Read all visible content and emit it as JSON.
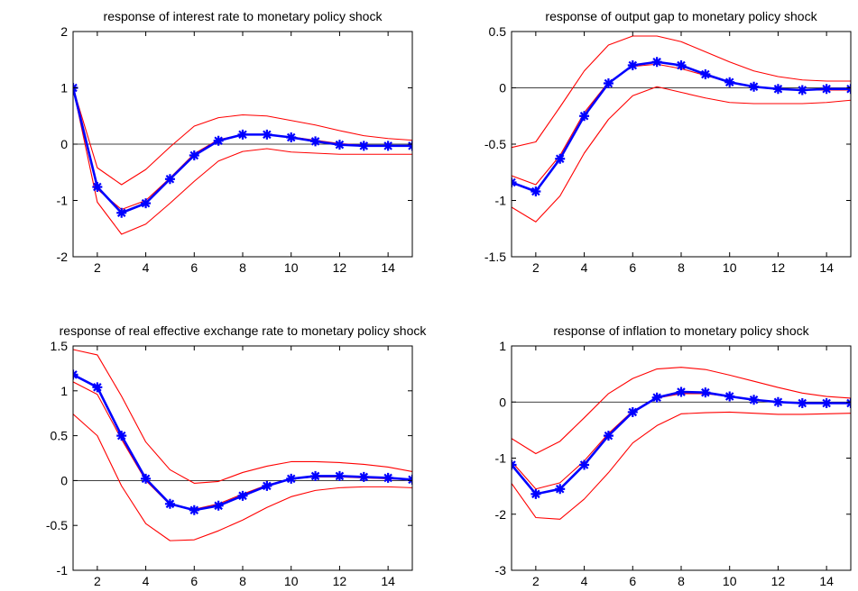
{
  "chart_data": [
    {
      "type": "line",
      "title": "response of interest rate to monetary policy shock",
      "x": [
        1,
        2,
        3,
        4,
        5,
        6,
        7,
        8,
        9,
        10,
        11,
        12,
        13,
        14,
        15
      ],
      "xlim": [
        1,
        15
      ],
      "ylim": [
        -2,
        2
      ],
      "xticks": [
        2,
        4,
        6,
        8,
        10,
        12,
        14
      ],
      "yticks": [
        -2,
        -1,
        0,
        1,
        2
      ],
      "ytick_labels": [
        "-2",
        "-1",
        "0",
        "1",
        "2"
      ],
      "series": [
        {
          "role": "response",
          "color": "#0000ff",
          "values": [
            1.0,
            -0.76,
            -1.22,
            -1.05,
            -0.62,
            -0.2,
            0.06,
            0.17,
            0.17,
            0.12,
            0.05,
            -0.01,
            -0.03,
            -0.03,
            -0.03
          ]
        },
        {
          "role": "upper",
          "color": "#ff0000",
          "values": [
            1.0,
            -0.42,
            -0.72,
            -0.45,
            -0.05,
            0.32,
            0.47,
            0.52,
            0.5,
            0.42,
            0.34,
            0.24,
            0.15,
            0.1,
            0.07
          ]
        },
        {
          "role": "lower",
          "color": "#ff0000",
          "values": [
            1.0,
            -1.03,
            -1.6,
            -1.42,
            -1.05,
            -0.66,
            -0.3,
            -0.13,
            -0.08,
            -0.14,
            -0.16,
            -0.18,
            -0.18,
            -0.18,
            -0.18
          ]
        },
        {
          "role": "median",
          "color": "#ff0000",
          "values": [
            1.0,
            -0.8,
            -1.16,
            -1.0,
            -0.6,
            -0.17,
            0.08,
            0.17,
            0.17,
            0.13,
            0.07,
            0.01,
            -0.02,
            -0.03,
            -0.03
          ]
        }
      ]
    },
    {
      "type": "line",
      "title": "response of output gap to monetary policy shock",
      "x": [
        1,
        2,
        3,
        4,
        5,
        6,
        7,
        8,
        9,
        10,
        11,
        12,
        13,
        14,
        15
      ],
      "xlim": [
        1,
        15
      ],
      "ylim": [
        -1.5,
        0.5
      ],
      "xticks": [
        2,
        4,
        6,
        8,
        10,
        12,
        14
      ],
      "yticks": [
        -1.5,
        -1,
        -0.5,
        0,
        0.5
      ],
      "ytick_labels": [
        "-1.5",
        "-1",
        "-0.5",
        "0",
        "0.5"
      ],
      "series": [
        {
          "role": "response",
          "color": "#0000ff",
          "values": [
            -0.84,
            -0.92,
            -0.63,
            -0.25,
            0.04,
            0.2,
            0.23,
            0.2,
            0.12,
            0.05,
            0.01,
            -0.01,
            -0.02,
            -0.01,
            -0.01
          ]
        },
        {
          "role": "upper",
          "color": "#ff0000",
          "values": [
            -0.53,
            -0.48,
            -0.17,
            0.15,
            0.38,
            0.46,
            0.46,
            0.41,
            0.32,
            0.23,
            0.15,
            0.1,
            0.07,
            0.06,
            0.06
          ]
        },
        {
          "role": "lower",
          "color": "#ff0000",
          "values": [
            -1.06,
            -1.19,
            -0.96,
            -0.58,
            -0.28,
            -0.07,
            0.01,
            -0.04,
            -0.09,
            -0.13,
            -0.14,
            -0.14,
            -0.14,
            -0.13,
            -0.11
          ]
        },
        {
          "role": "median",
          "color": "#ff0000",
          "values": [
            -0.78,
            -0.86,
            -0.6,
            -0.22,
            0.05,
            0.19,
            0.21,
            0.17,
            0.11,
            0.05,
            0.01,
            -0.01,
            -0.02,
            -0.02,
            -0.02
          ]
        }
      ]
    },
    {
      "type": "line",
      "title": "response of real effective exchange rate to monetary policy shock",
      "x": [
        1,
        2,
        3,
        4,
        5,
        6,
        7,
        8,
        9,
        10,
        11,
        12,
        13,
        14,
        15
      ],
      "xlim": [
        1,
        15
      ],
      "ylim": [
        -1,
        1.5
      ],
      "xticks": [
        2,
        4,
        6,
        8,
        10,
        12,
        14
      ],
      "yticks": [
        -1,
        -0.5,
        0,
        0.5,
        1,
        1.5
      ],
      "ytick_labels": [
        "-1",
        "-0.5",
        "0",
        "0.5",
        "1",
        "1.5"
      ],
      "series": [
        {
          "role": "response",
          "color": "#0000ff",
          "values": [
            1.18,
            1.04,
            0.5,
            0.02,
            -0.26,
            -0.33,
            -0.28,
            -0.17,
            -0.06,
            0.02,
            0.05,
            0.05,
            0.04,
            0.03,
            0.01
          ]
        },
        {
          "role": "upper",
          "color": "#ff0000",
          "values": [
            1.46,
            1.4,
            0.94,
            0.43,
            0.12,
            -0.03,
            -0.01,
            0.09,
            0.16,
            0.21,
            0.21,
            0.2,
            0.18,
            0.15,
            0.1
          ]
        },
        {
          "role": "lower",
          "color": "#ff0000",
          "values": [
            0.74,
            0.5,
            -0.06,
            -0.48,
            -0.67,
            -0.66,
            -0.56,
            -0.44,
            -0.3,
            -0.18,
            -0.11,
            -0.08,
            -0.07,
            -0.07,
            -0.08
          ]
        },
        {
          "role": "median",
          "color": "#ff0000",
          "values": [
            1.1,
            0.96,
            0.46,
            0.0,
            -0.27,
            -0.32,
            -0.26,
            -0.15,
            -0.05,
            0.02,
            0.04,
            0.04,
            0.03,
            0.02,
            0.01
          ]
        }
      ]
    },
    {
      "type": "line",
      "title": "response of inflation to monetary policy shock",
      "x": [
        1,
        2,
        3,
        4,
        5,
        6,
        7,
        8,
        9,
        10,
        11,
        12,
        13,
        14,
        15
      ],
      "xlim": [
        1,
        15
      ],
      "ylim": [
        -3,
        1
      ],
      "xticks": [
        2,
        4,
        6,
        8,
        10,
        12,
        14
      ],
      "yticks": [
        -3,
        -2,
        -1,
        0,
        1
      ],
      "ytick_labels": [
        "-3",
        "-2",
        "-1",
        "0",
        "1"
      ],
      "series": [
        {
          "role": "response",
          "color": "#0000ff",
          "values": [
            -1.12,
            -1.64,
            -1.55,
            -1.12,
            -0.6,
            -0.18,
            0.08,
            0.18,
            0.17,
            0.1,
            0.04,
            0.0,
            -0.02,
            -0.02,
            -0.02
          ]
        },
        {
          "role": "upper",
          "color": "#ff0000",
          "values": [
            -0.65,
            -0.92,
            -0.7,
            -0.28,
            0.15,
            0.42,
            0.59,
            0.62,
            0.58,
            0.48,
            0.37,
            0.26,
            0.16,
            0.1,
            0.07
          ]
        },
        {
          "role": "lower",
          "color": "#ff0000",
          "values": [
            -1.45,
            -2.06,
            -2.09,
            -1.73,
            -1.26,
            -0.73,
            -0.42,
            -0.21,
            -0.19,
            -0.18,
            -0.2,
            -0.22,
            -0.22,
            -0.21,
            -0.2
          ]
        },
        {
          "role": "median",
          "color": "#ff0000",
          "values": [
            -1.06,
            -1.55,
            -1.44,
            -1.05,
            -0.56,
            -0.16,
            0.07,
            0.15,
            0.15,
            0.1,
            0.04,
            0.0,
            -0.02,
            -0.02,
            -0.02
          ]
        }
      ]
    }
  ]
}
